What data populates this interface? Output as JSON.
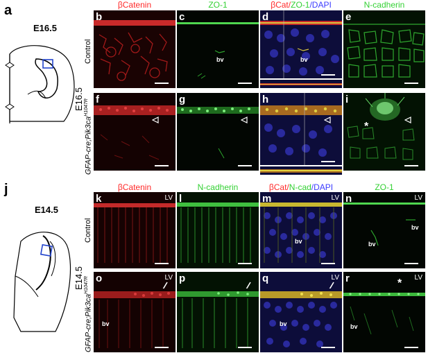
{
  "figure": {
    "section_a": {
      "letter": "a",
      "stage": "E16.5"
    },
    "section_j": {
      "letter": "j",
      "stage": "E14.5"
    },
    "top": {
      "headers": {
        "p1": "βCatenin",
        "p2": "ZO-1",
        "p3_a": "βCat/",
        "p3_b": "ZO-1",
        "p3_c": "/DAPI",
        "p4": "N-cadherin"
      },
      "stage_label": "E16.5",
      "row1_label": "Control",
      "row2_label": "GFAP-cre;Pik3ca",
      "row2_sup": "H1047R",
      "panels": [
        "b",
        "c",
        "d",
        "e",
        "f",
        "g",
        "h",
        "i"
      ],
      "bv": "bv",
      "star": "*"
    },
    "bottom": {
      "headers": {
        "p1": "βCatenin",
        "p2": "N-cadherin",
        "p3_a": "βCat/",
        "p3_b": "N-cad",
        "p3_c": "/DAPI",
        "p4": "ZO-1"
      },
      "stage_label": "E14.5",
      "row1_label": "Control",
      "row2_label": "GFAP-cre;Pik3ca",
      "row2_sup": "H1047R",
      "panels": [
        "k",
        "l",
        "m",
        "n",
        "o",
        "p",
        "q",
        "r"
      ],
      "lv": "LV",
      "bv": "bv",
      "star": "*"
    },
    "colors": {
      "red": "#ff2a2a",
      "green": "#34d134",
      "blue": "#3b3bff"
    }
  }
}
